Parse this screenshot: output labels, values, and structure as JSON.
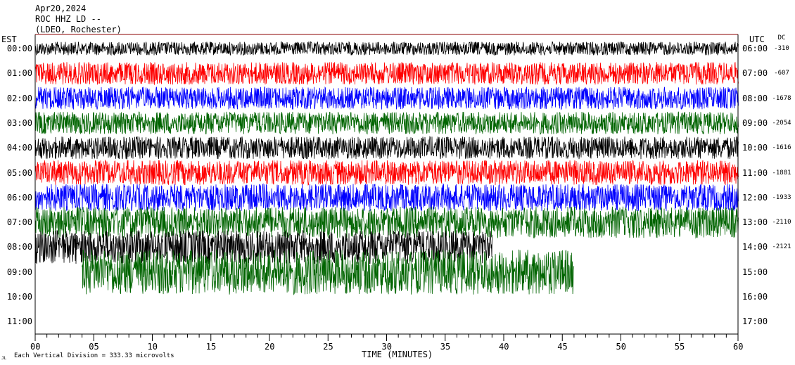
{
  "header": {
    "date": "Apr20,2024",
    "station": "ROC HHZ LD --",
    "network": "(LDEO, Rochester)"
  },
  "left_zone": "EST",
  "right_zone": "UTC",
  "dc_header": "DC",
  "footer": {
    "scale_text": "Each Vertical Division =  333.33 microvolts",
    "mark": "JL"
  },
  "colors": {
    "black": "#000000",
    "red": "#ff0000",
    "blue": "#0000ff",
    "green": "#006400",
    "frame": "#000000",
    "hour_line": "#8b0000"
  },
  "chart_data": {
    "type": "line",
    "title": "ROC HHZ LD --",
    "xlabel": "TIME (MINUTES)",
    "ylabel": "",
    "xlim": [
      0,
      60
    ],
    "x_ticks": [
      "00",
      "05",
      "10",
      "15",
      "20",
      "25",
      "30",
      "35",
      "40",
      "45",
      "50",
      "55",
      "60"
    ],
    "rows": [
      {
        "est": "00:00",
        "utc": "06:00",
        "dc": "-310",
        "color": "black",
        "amplitude": 0.6
      },
      {
        "est": "01:00",
        "utc": "07:00",
        "dc": "-607",
        "color": "red",
        "amplitude": 1.0
      },
      {
        "est": "02:00",
        "utc": "08:00",
        "dc": "-1678",
        "color": "blue",
        "amplitude": 1.0
      },
      {
        "est": "03:00",
        "utc": "09:00",
        "dc": "-2054",
        "color": "green",
        "amplitude": 1.0
      },
      {
        "est": "04:00",
        "utc": "10:00",
        "dc": "-1616",
        "color": "black",
        "amplitude": 1.0
      },
      {
        "est": "05:00",
        "utc": "11:00",
        "dc": "-1881",
        "color": "red",
        "amplitude": 1.1
      },
      {
        "est": "06:00",
        "utc": "12:00",
        "dc": "-1933",
        "color": "blue",
        "amplitude": 1.2
      },
      {
        "est": "07:00",
        "utc": "13:00",
        "dc": "-2110",
        "color": "green",
        "amplitude": 1.4
      },
      {
        "est": "08:00",
        "utc": "14:00",
        "dc": "-2121",
        "color": "black",
        "amplitude": 1.5,
        "end_minute": 39
      },
      {
        "est": "09:00",
        "utc": "15:00",
        "dc": "",
        "color": "green",
        "amplitude": 2.0,
        "start_minute": 4,
        "end_minute": 46
      },
      {
        "est": "10:00",
        "utc": "16:00",
        "dc": "",
        "color": "black",
        "amplitude": 0,
        "end_minute": 0
      },
      {
        "est": "11:00",
        "utc": "17:00",
        "dc": "",
        "color": "black",
        "amplitude": 0,
        "end_minute": 0
      }
    ],
    "grid": false
  }
}
